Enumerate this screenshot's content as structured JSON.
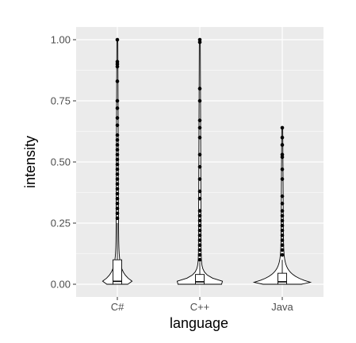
{
  "chart_data": {
    "type": "violin-boxplot",
    "xlabel": "language",
    "ylabel": "intensity",
    "categories": [
      "C#",
      "C++",
      "Java"
    ],
    "ylim": [
      -0.05,
      1.04
    ],
    "y_ticks": [
      0.0,
      0.25,
      0.5,
      0.75,
      1.0
    ],
    "y_tick_labels": [
      "0.00",
      "0.25",
      "0.50",
      "0.75",
      "1.00"
    ],
    "grid": true,
    "panel_background": "#ebebeb",
    "series": [
      {
        "category": "C#",
        "box": {
          "min": 0.0,
          "q1": 0.0,
          "median": 0.012,
          "q3": 0.1,
          "max": 0.25
        },
        "violin_max_y": 1.0,
        "outliers": [
          0.27,
          0.29,
          0.31,
          0.33,
          0.35,
          0.37,
          0.39,
          0.41,
          0.43,
          0.45,
          0.47,
          0.49,
          0.51,
          0.53,
          0.55,
          0.57,
          0.59,
          0.61,
          0.65,
          0.68,
          0.72,
          0.75,
          0.83,
          0.89,
          0.9,
          0.91,
          1.0
        ]
      },
      {
        "category": "C++",
        "box": {
          "min": 0.0,
          "q1": 0.0,
          "median": 0.01,
          "q3": 0.04,
          "max": 0.09
        },
        "violin_max_y": 1.0,
        "outliers": [
          0.1,
          0.12,
          0.14,
          0.16,
          0.18,
          0.2,
          0.22,
          0.24,
          0.26,
          0.28,
          0.3,
          0.35,
          0.38,
          0.43,
          0.48,
          0.53,
          0.6,
          0.64,
          0.67,
          0.75,
          0.8,
          0.99,
          1.0
        ]
      },
      {
        "category": "Java",
        "box": {
          "min": 0.0,
          "q1": 0.0,
          "median": 0.01,
          "q3": 0.045,
          "max": 0.1
        },
        "violin_max_y": 0.64,
        "outliers": [
          0.12,
          0.14,
          0.16,
          0.18,
          0.2,
          0.22,
          0.24,
          0.26,
          0.28,
          0.3,
          0.33,
          0.36,
          0.43,
          0.47,
          0.52,
          0.53,
          0.57,
          0.6,
          0.64
        ]
      }
    ]
  }
}
